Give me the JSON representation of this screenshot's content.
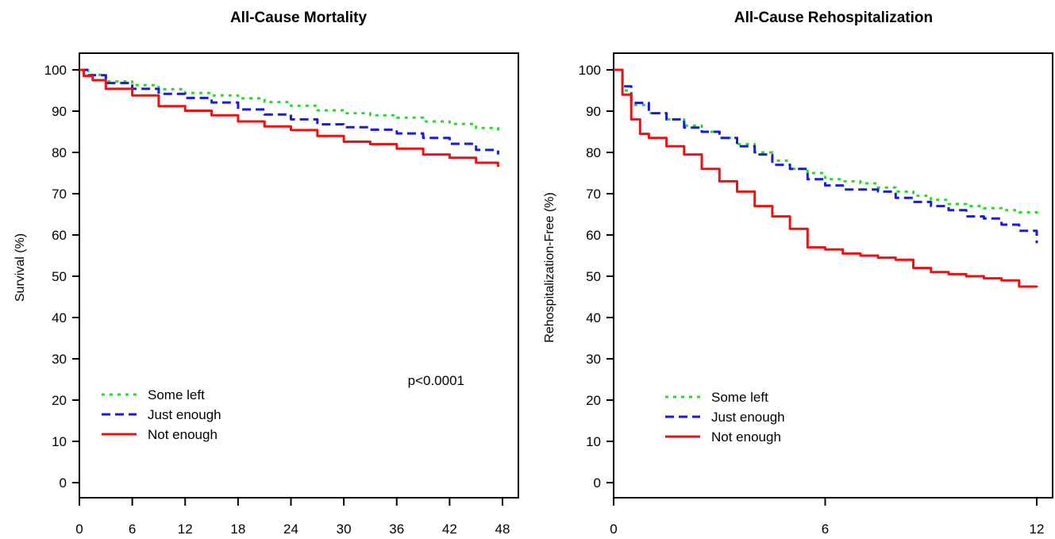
{
  "chart_data": [
    {
      "type": "line",
      "title": "All-Cause Mortality",
      "xlabel": "",
      "ylabel": "Survival (%)",
      "xlim": [
        0,
        48
      ],
      "ylim": [
        0,
        100
      ],
      "x_ticks": [
        0,
        6,
        12,
        18,
        24,
        30,
        36,
        42,
        48
      ],
      "y_ticks": [
        0,
        10,
        20,
        30,
        40,
        50,
        60,
        70,
        80,
        90,
        100
      ],
      "grid": false,
      "legend_position": "bottom-left",
      "annotation": "p<0.0001",
      "series": [
        {
          "name": "Some left",
          "style": "dotted",
          "color": "#22dd22",
          "x": [
            0,
            1,
            3,
            6,
            9,
            12,
            15,
            18,
            21,
            24,
            27,
            30,
            33,
            36,
            39,
            42,
            45,
            47.5
          ],
          "y": [
            100,
            98.8,
            97.2,
            96.3,
            95.3,
            94.4,
            93.8,
            93.1,
            92.2,
            91.3,
            90.2,
            89.5,
            89.0,
            88.4,
            87.5,
            86.9,
            85.9,
            85.3
          ]
        },
        {
          "name": "Just enough",
          "style": "dashed",
          "color": "#1a1ae0",
          "x": [
            0,
            1,
            3,
            6,
            9,
            12,
            15,
            18,
            21,
            24,
            27,
            30,
            33,
            36,
            39,
            42,
            45,
            47.5
          ],
          "y": [
            100,
            98.7,
            96.8,
            95.4,
            94.2,
            93.2,
            92.1,
            90.4,
            89.2,
            88.0,
            86.8,
            86.1,
            85.5,
            84.6,
            83.5,
            82.1,
            80.6,
            79.5
          ]
        },
        {
          "name": "Not enough",
          "style": "solid",
          "color": "#ee1111",
          "x": [
            0,
            0.5,
            1.5,
            3,
            6,
            9,
            12,
            15,
            18,
            21,
            24,
            27,
            30,
            33,
            36,
            39,
            42,
            45,
            47.5
          ],
          "y": [
            100,
            98.5,
            97.5,
            95.4,
            93.8,
            91.2,
            90.1,
            89.0,
            87.5,
            86.3,
            85.4,
            84.0,
            82.6,
            82.0,
            80.9,
            79.5,
            78.7,
            77.5,
            76.5
          ]
        }
      ]
    },
    {
      "type": "line",
      "title": "All-Cause Rehospitalization",
      "xlabel": "",
      "ylabel": "Rehospitalization-Free (%)",
      "xlim": [
        0,
        12
      ],
      "ylim": [
        0,
        100
      ],
      "x_ticks": [
        0,
        6,
        12
      ],
      "y_ticks": [
        0,
        10,
        20,
        30,
        40,
        50,
        60,
        70,
        80,
        90,
        100
      ],
      "grid": false,
      "legend_position": "bottom-left",
      "series": [
        {
          "name": "Some left",
          "style": "dotted",
          "color": "#22dd22",
          "x": [
            0,
            0.25,
            0.5,
            1,
            1.5,
            2,
            2.5,
            3,
            3.5,
            4,
            4.5,
            5,
            5.5,
            6,
            6.5,
            7,
            7.5,
            8,
            8.5,
            9,
            9.5,
            10,
            10.5,
            11,
            11.5,
            12
          ],
          "y": [
            100,
            95,
            91.5,
            89.5,
            88,
            86.5,
            85,
            83.5,
            82,
            80,
            78,
            76,
            75,
            73.5,
            73,
            72.5,
            71.5,
            70.5,
            69.5,
            68.5,
            67.5,
            67,
            66.5,
            66,
            65.5,
            65
          ]
        },
        {
          "name": "Just enough",
          "style": "dashed",
          "color": "#1a1ae0",
          "x": [
            0,
            0.25,
            0.5,
            1,
            1.5,
            2,
            2.5,
            3,
            3.5,
            4,
            4.5,
            5,
            5.5,
            6,
            6.5,
            7,
            7.5,
            8,
            8.5,
            9,
            9.5,
            10,
            10.5,
            11,
            11.5,
            12
          ],
          "y": [
            100,
            96,
            92,
            89.5,
            88,
            86,
            85,
            83.5,
            81.5,
            79.5,
            77,
            76,
            73.5,
            72,
            71,
            71,
            70.5,
            69,
            68,
            67,
            66,
            64.5,
            64,
            62.5,
            61,
            58
          ]
        },
        {
          "name": "Not enough",
          "style": "solid",
          "color": "#ee1111",
          "x": [
            0,
            0.25,
            0.5,
            0.75,
            1,
            1.5,
            2,
            2.5,
            3,
            3.5,
            4,
            4.5,
            5,
            5.5,
            6,
            6.5,
            7,
            7.5,
            8,
            8.5,
            9,
            9.5,
            10,
            10.5,
            11,
            11.5,
            12
          ],
          "y": [
            100,
            94,
            88,
            84.5,
            83.5,
            81.5,
            79.5,
            76,
            73,
            70.5,
            67,
            64.5,
            61.5,
            57,
            56.5,
            55.5,
            55,
            54.5,
            54,
            52,
            51,
            50.5,
            50,
            49.5,
            49,
            47.5,
            47.3
          ]
        }
      ]
    }
  ]
}
